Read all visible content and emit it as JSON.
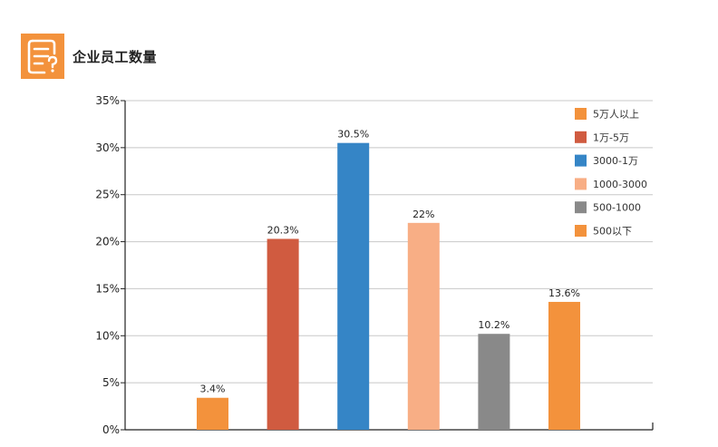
{
  "header": {
    "title": "企业员工数量",
    "icon": "document-question-icon",
    "icon_color": "#F3923C"
  },
  "chart_data": {
    "type": "bar",
    "categories": [
      "5万人以上",
      "1万-5万",
      "3000-1万",
      "1000-3000",
      "500-1000",
      "500以下"
    ],
    "values": [
      3.4,
      20.3,
      30.5,
      22,
      10.2,
      13.6
    ],
    "value_labels": [
      "3.4%",
      "20.3%",
      "30.5%",
      "22%",
      "10.2%",
      "13.6%"
    ],
    "colors": [
      "#F3923C",
      "#D05B40",
      "#3585C6",
      "#F8AE85",
      "#898989",
      "#F3923C"
    ],
    "title": "",
    "xlabel": "",
    "ylabel": "",
    "ylim": [
      0,
      35
    ],
    "yticks": [
      0,
      5,
      10,
      15,
      20,
      25,
      30,
      35
    ],
    "ytick_labels": [
      "0%",
      "5%",
      "10%",
      "15%",
      "20%",
      "25%",
      "30%",
      "35%"
    ],
    "grid": true,
    "legend_position": "top-right"
  }
}
